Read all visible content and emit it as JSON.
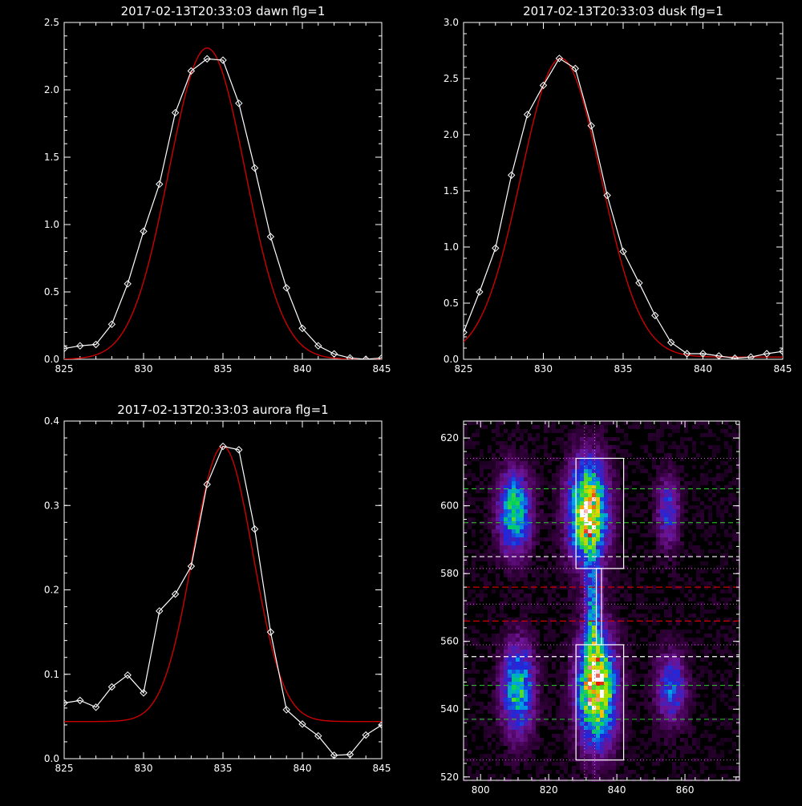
{
  "colors": {
    "background": "#000000",
    "axes": "#ffffff",
    "data": "#ffffff",
    "fit": "#cc0000",
    "guide_green": "#33cc33",
    "guide_red": "#cc0000",
    "guide_white": "#ffffff",
    "guide_purple": "#cc66cc"
  },
  "chart_data": [
    {
      "type": "line",
      "title": "2017-02-13T20:33:03 dawn flg=1",
      "xlim": [
        825,
        845
      ],
      "ylim": [
        0,
        2.5
      ],
      "xticks": [
        "825",
        "830",
        "835",
        "840",
        "845"
      ],
      "yticks": [
        "0.0",
        "0.5",
        "1.0",
        "1.5",
        "2.0",
        "2.5"
      ],
      "series": [
        {
          "role": "data",
          "marker": "diamond",
          "x": [
            825,
            826,
            827,
            828,
            829,
            830,
            831,
            832,
            833,
            834,
            835,
            836,
            837,
            838,
            839,
            840,
            841,
            842,
            843,
            844,
            845
          ],
          "y": [
            0.08,
            0.1,
            0.11,
            0.26,
            0.56,
            0.95,
            1.3,
            1.83,
            2.14,
            2.23,
            2.22,
            1.9,
            1.42,
            0.91,
            0.53,
            0.23,
            0.1,
            0.04,
            0.01,
            0.0,
            0.01
          ]
        },
        {
          "role": "fit",
          "shape": "gaussian",
          "amplitude": 2.31,
          "center": 834.0,
          "sigma": 2.4,
          "offset": 0.0
        }
      ]
    },
    {
      "type": "line",
      "title": "2017-02-13T20:33:03 dusk flg=1",
      "xlim": [
        825,
        845
      ],
      "ylim": [
        0,
        3.0
      ],
      "xticks": [
        "825",
        "830",
        "835",
        "840",
        "845"
      ],
      "yticks": [
        "0.0",
        "0.5",
        "1.0",
        "1.5",
        "2.0",
        "2.5",
        "3.0"
      ],
      "series": [
        {
          "role": "data",
          "marker": "diamond",
          "x": [
            825,
            826,
            827,
            828,
            829,
            830,
            831,
            832,
            833,
            834,
            835,
            836,
            837,
            838,
            839,
            840,
            841,
            842,
            843,
            844,
            845
          ],
          "y": [
            0.24,
            0.6,
            0.99,
            1.64,
            2.18,
            2.44,
            2.68,
            2.59,
            2.08,
            1.46,
            0.96,
            0.68,
            0.39,
            0.15,
            0.05,
            0.05,
            0.03,
            0.01,
            0.02,
            0.05,
            0.07
          ]
        },
        {
          "role": "fit",
          "shape": "gaussian",
          "amplitude": 2.66,
          "center": 831.1,
          "sigma": 2.5,
          "offset": 0.02
        }
      ]
    },
    {
      "type": "line",
      "title": "2017-02-13T20:33:03 aurora flg=1",
      "xlim": [
        825,
        845
      ],
      "ylim": [
        0,
        0.4
      ],
      "xticks": [
        "825",
        "830",
        "835",
        "840",
        "845"
      ],
      "yticks": [
        "0.0",
        "0.1",
        "0.2",
        "0.3",
        "0.4"
      ],
      "series": [
        {
          "role": "data",
          "marker": "diamond",
          "x": [
            825,
            826,
            827,
            828,
            829,
            830,
            831,
            832,
            833,
            834,
            835,
            836,
            837,
            838,
            839,
            840,
            841,
            842,
            843,
            844,
            845
          ],
          "y": [
            0.066,
            0.069,
            0.061,
            0.085,
            0.099,
            0.078,
            0.175,
            0.195,
            0.228,
            0.325,
            0.37,
            0.366,
            0.272,
            0.15,
            0.058,
            0.041,
            0.027,
            0.004,
            0.005,
            0.028,
            0.04
          ]
        },
        {
          "role": "fit",
          "shape": "gaussian",
          "amplitude": 0.326,
          "center": 835.0,
          "sigma": 1.9,
          "offset": 0.044
        }
      ]
    },
    {
      "type": "heatmap",
      "title": "",
      "xlim": [
        795,
        876
      ],
      "ylim": [
        519,
        625
      ],
      "xticks": [
        "800",
        "820",
        "840",
        "860"
      ],
      "yticks": [
        "520",
        "540",
        "560",
        "580",
        "600",
        "620"
      ],
      "blobs": [
        {
          "x": 810,
          "y": 598,
          "sx": 3.2,
          "sy": 8,
          "peak": 0.65
        },
        {
          "x": 831.5,
          "y": 598,
          "sx": 3.8,
          "sy": 10,
          "peak": 1.0
        },
        {
          "x": 855,
          "y": 598,
          "sx": 2.2,
          "sy": 7,
          "peak": 0.35
        },
        {
          "x": 811,
          "y": 546,
          "sx": 3.2,
          "sy": 9,
          "peak": 0.6
        },
        {
          "x": 834,
          "y": 546,
          "sx": 3.8,
          "sy": 11,
          "peak": 1.0
        },
        {
          "x": 856,
          "y": 546,
          "sx": 3.0,
          "sy": 7,
          "peak": 0.4
        },
        {
          "x": 833,
          "y": 570,
          "sx": 1.5,
          "sy": 9,
          "peak": 0.45
        }
      ],
      "boxes": [
        {
          "x": [
            828,
            842
          ],
          "y": [
            581.5,
            614
          ]
        },
        {
          "x": [
            828,
            842
          ],
          "y": [
            525,
            559
          ]
        },
        {
          "x": [
            834,
            835.5
          ],
          "y": [
            559,
            581.5
          ]
        }
      ],
      "guides": {
        "vertical_dotted": [
          830.5,
          833.5
        ],
        "green_dashed": [
          605,
          595,
          547,
          537
        ],
        "white_dashed": [
          585,
          555.5
        ],
        "red_dashed": [
          576,
          566
        ],
        "purple_dotted": [
          614,
          581.5,
          571,
          559,
          525
        ]
      }
    }
  ]
}
